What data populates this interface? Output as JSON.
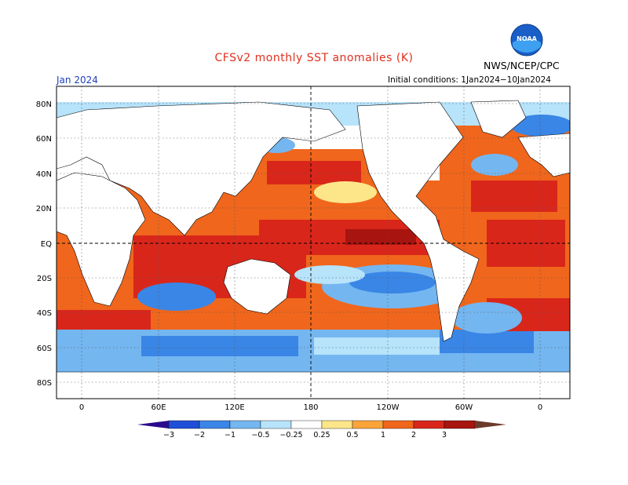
{
  "header": {
    "title": "CFSv2 monthly SST anomalies (K)",
    "agency": "NWS/NCEP/CPC",
    "logo_text": "NOAA",
    "period": "Jan 2024",
    "initial_conditions": "Initial conditions: 1Jan2024−10Jan2024"
  },
  "axes": {
    "lat_labels": [
      "80N",
      "60N",
      "40N",
      "20N",
      "EQ",
      "20S",
      "40S",
      "60S",
      "80S"
    ],
    "lon_labels": [
      "0",
      "60E",
      "120E",
      "180",
      "120W",
      "60W",
      "0"
    ]
  },
  "colorbar": {
    "ticks": [
      "−3",
      "−2",
      "−1",
      "−0.5",
      "−0.25",
      "0.25",
      "0.5",
      "1",
      "2",
      "3"
    ],
    "colors": [
      "#2a0a8c",
      "#1f4fd8",
      "#3a86e6",
      "#74b6f0",
      "#b7e3fb",
      "#ffffff",
      "#fde68a",
      "#fca43a",
      "#f0661c",
      "#d9261b",
      "#a8140f",
      "#6b3a2a"
    ]
  },
  "colors": {
    "title": "#e0301e",
    "period": "#1f3fbf",
    "ocean_neutral": "#ffffff",
    "land": "#ffffff"
  }
}
